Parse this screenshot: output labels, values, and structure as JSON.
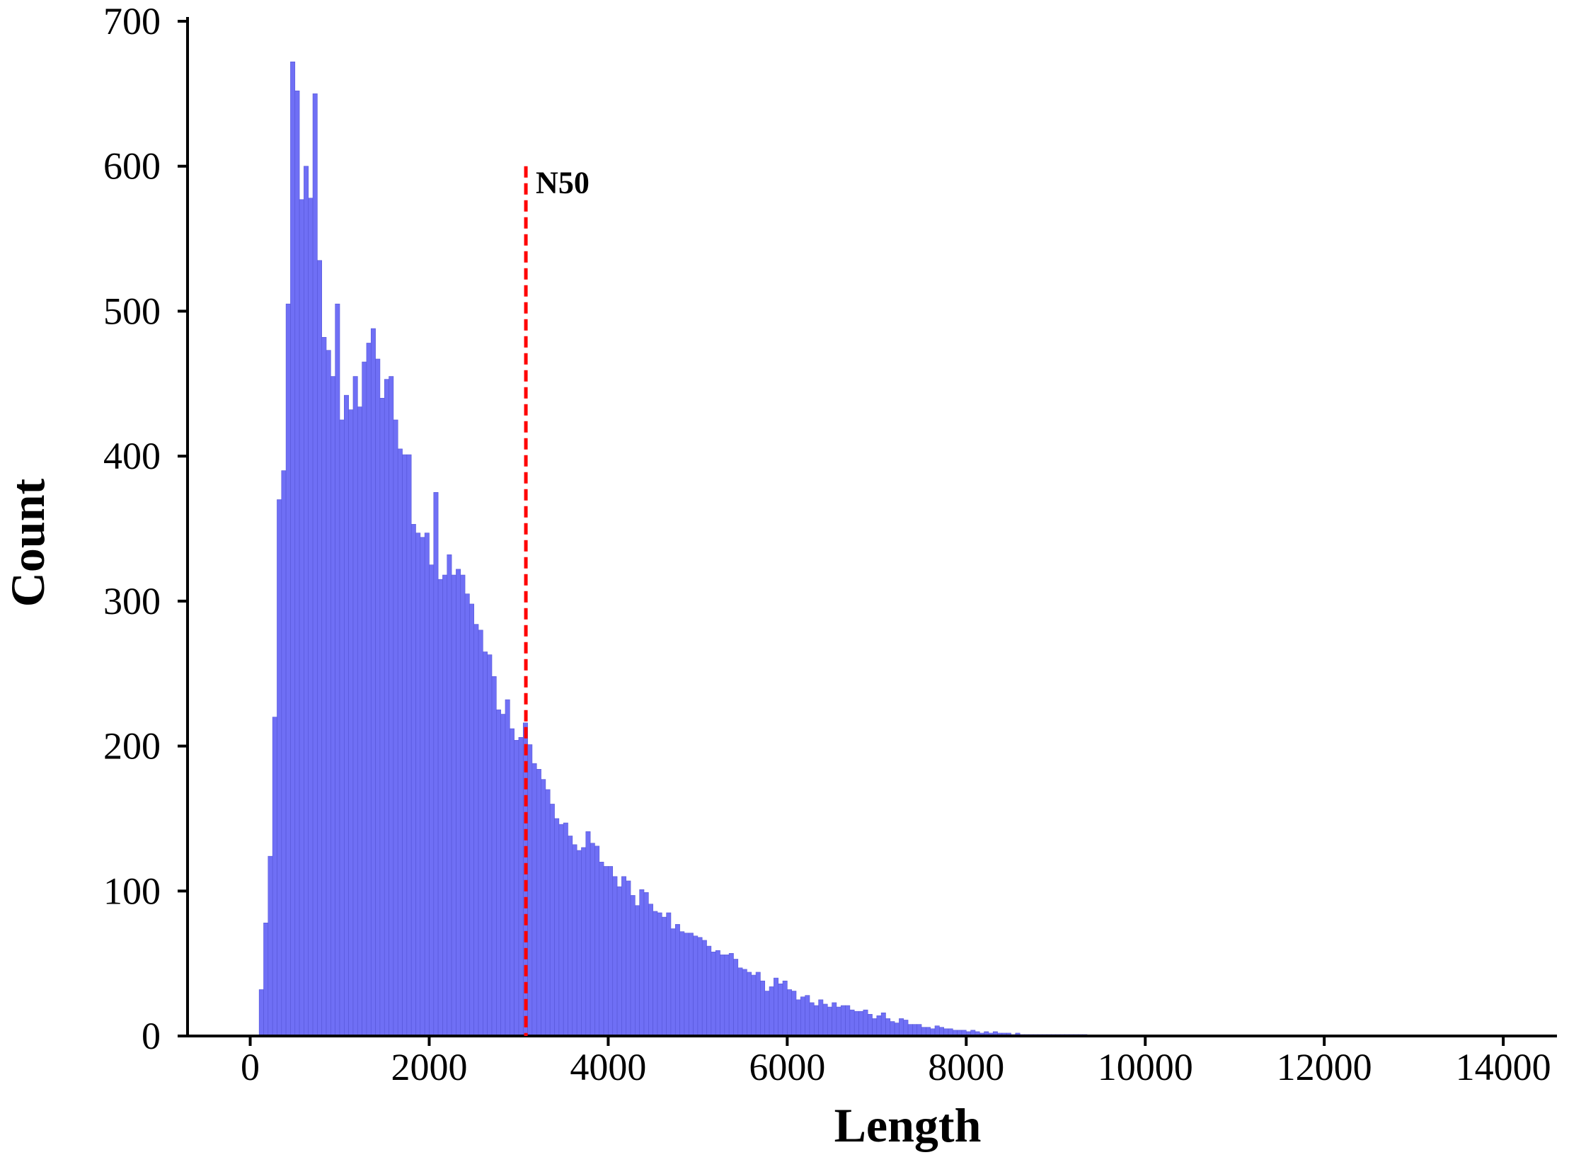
{
  "chart_data": {
    "type": "bar",
    "xlabel": "Length",
    "ylabel": "Count",
    "xlim": [
      -700,
      14600
    ],
    "ylim": [
      0,
      700
    ],
    "xticks": [
      0,
      2000,
      4000,
      6000,
      8000,
      10000,
      12000,
      14000
    ],
    "yticks": [
      0,
      100,
      200,
      300,
      400,
      500,
      600,
      700
    ],
    "grid": false,
    "bin_width": 50,
    "bin_start": 100,
    "bar_color": "#6f6ff5",
    "values": [
      32,
      78,
      124,
      220,
      370,
      390,
      505,
      672,
      652,
      577,
      600,
      578,
      650,
      535,
      482,
      473,
      455,
      505,
      425,
      442,
      432,
      455,
      434,
      465,
      478,
      488,
      467,
      440,
      453,
      455,
      425,
      405,
      401,
      401,
      353,
      347,
      344,
      347,
      325,
      375,
      315,
      318,
      332,
      318,
      322,
      318,
      305,
      298,
      284,
      280,
      265,
      263,
      248,
      225,
      222,
      232,
      212,
      204,
      206,
      216,
      201,
      188,
      184,
      177,
      170,
      160,
      150,
      146,
      147,
      138,
      132,
      128,
      130,
      141,
      133,
      131,
      120,
      117,
      117,
      110,
      103,
      110,
      107,
      97,
      90,
      101,
      99,
      91,
      86,
      85,
      82,
      85,
      74,
      77,
      72,
      71,
      71,
      69,
      68,
      66,
      62,
      58,
      59,
      56,
      56,
      57,
      53,
      47,
      46,
      44,
      42,
      44,
      38,
      31,
      34,
      40,
      36,
      38,
      32,
      31,
      25,
      27,
      28,
      23,
      21,
      25,
      22,
      20,
      23,
      20,
      21,
      21,
      18,
      17,
      17,
      18,
      15,
      12,
      14,
      16,
      12,
      10,
      9,
      12,
      11,
      8,
      8,
      8,
      6,
      6,
      5,
      7,
      6,
      5,
      5,
      4,
      4,
      4,
      3,
      4,
      3,
      2,
      3,
      2,
      3,
      2,
      2,
      2,
      1,
      2,
      1,
      1,
      1,
      1,
      1,
      1,
      1,
      1,
      1,
      1,
      1,
      1,
      1,
      1,
      1
    ],
    "annotation": {
      "label": "N50",
      "x": 3080,
      "y_top": 600,
      "color": "#ff0000",
      "style": "dashed"
    }
  }
}
